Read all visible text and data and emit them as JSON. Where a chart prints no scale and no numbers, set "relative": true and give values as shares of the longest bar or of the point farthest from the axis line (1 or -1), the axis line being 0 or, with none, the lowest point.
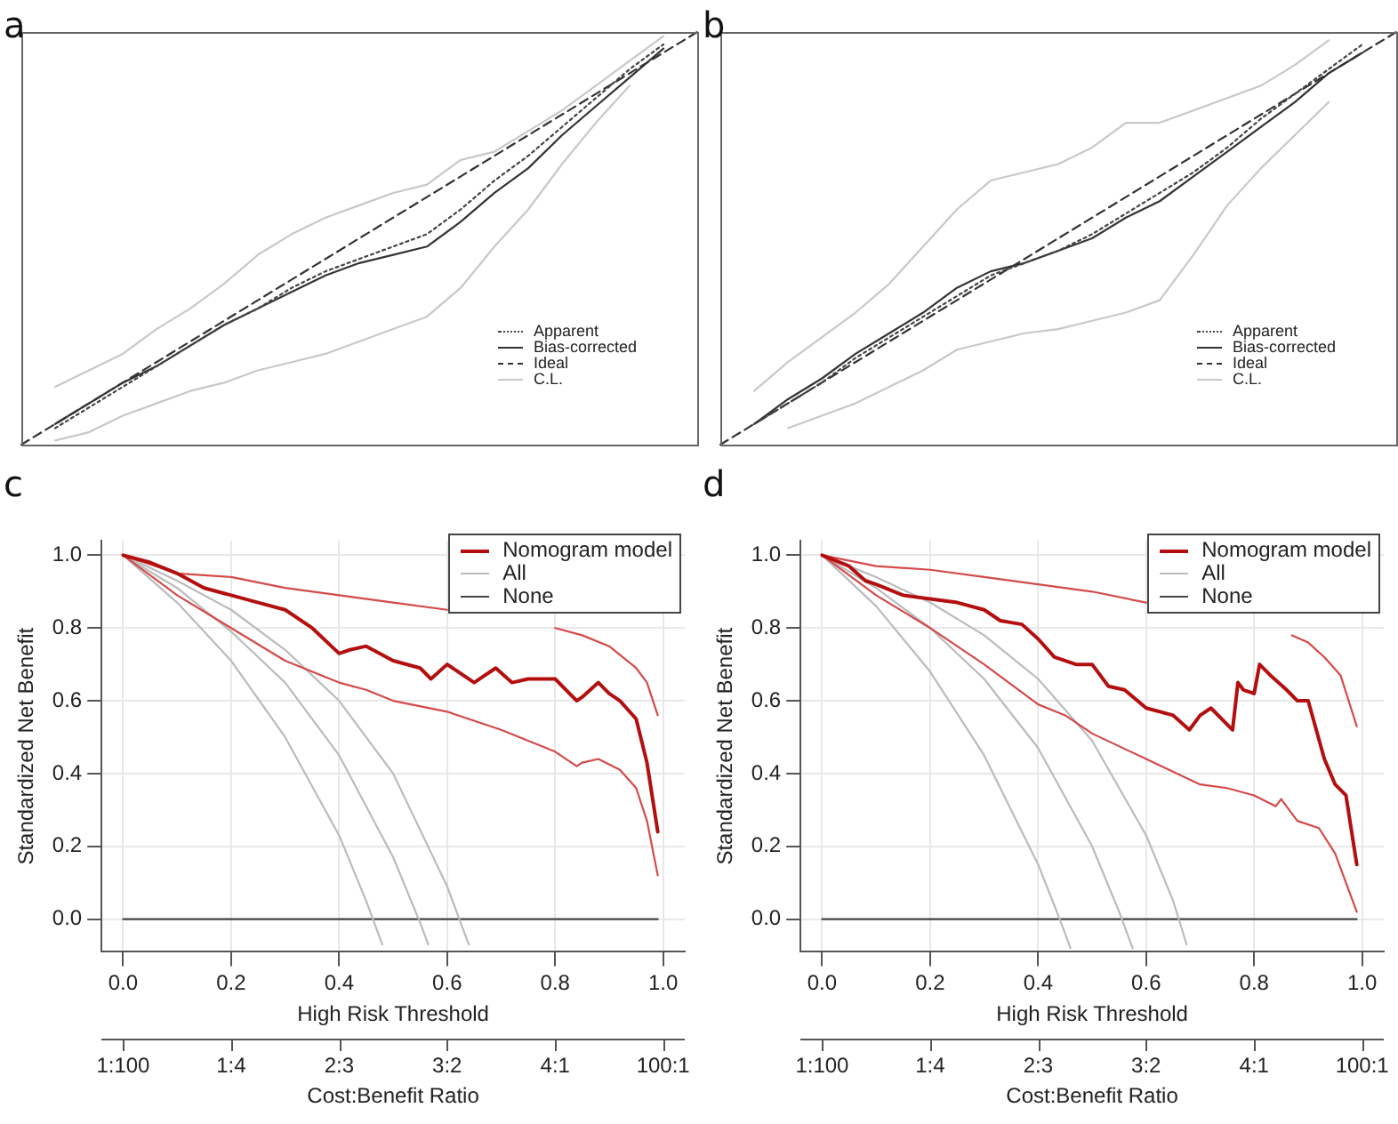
{
  "chart_data": [
    {
      "type": "line",
      "title": "a",
      "relative": true,
      "legend": "bottom right",
      "marker": "none",
      "categories": [
        null,
        null,
        null,
        null,
        null,
        null,
        null,
        null,
        null,
        null,
        null,
        null,
        null,
        null,
        null,
        null,
        null,
        null,
        null,
        null,
        null
      ],
      "series": [
        {
          "name": "Apparent",
          "color": "#444444",
          "line_style": "dotted",
          "values": [
            null,
            0.04,
            0.09,
            0.14,
            0.19,
            0.24,
            0.29,
            0.33,
            0.38,
            0.42,
            0.45,
            0.48,
            0.51,
            0.57,
            0.64,
            0.7,
            0.77,
            0.84,
            0.91,
            0.97,
            null
          ]
        },
        {
          "name": "Bias-corrected",
          "color": "#333333",
          "line_style": "solid",
          "values": [
            null,
            0.05,
            0.1,
            0.15,
            0.19,
            0.24,
            0.29,
            0.33,
            0.37,
            0.41,
            0.44,
            0.46,
            0.48,
            0.54,
            0.61,
            0.67,
            0.75,
            0.82,
            0.89,
            0.96,
            null
          ]
        },
        {
          "name": "Ideal",
          "color": "#333333",
          "line_style": "dashed",
          "values": [
            0,
            0.05,
            0.1,
            0.15,
            0.2,
            0.25,
            0.3,
            0.35,
            0.4,
            0.45,
            0.5,
            0.55,
            0.6,
            0.65,
            0.7,
            0.75,
            0.8,
            0.85,
            0.9,
            0.95,
            1
          ]
        },
        {
          "name": "C.L.",
          "color": "#c8c8c8",
          "line_style": "solid",
          "values": [
            null,
            0.14,
            0.18,
            0.22,
            0.28,
            0.33,
            0.39,
            0.46,
            0.51,
            0.55,
            0.58,
            0.61,
            0.63,
            0.69,
            0.71,
            0.76,
            0.81,
            0.87,
            0.93,
            0.99,
            null
          ]
        },
        {
          "color": "#c8c8c8",
          "line_style": "solid",
          "values": [
            null,
            0.01,
            0.03,
            0.07,
            0.1,
            0.13,
            0.15,
            0.18,
            0.2,
            0.22,
            0.25,
            0.28,
            0.31,
            0.38,
            0.48,
            0.57,
            0.68,
            0.78,
            0.87,
            null,
            null
          ]
        }
      ]
    },
    {
      "type": "line",
      "title": "b",
      "relative": true,
      "legend": "bottom right",
      "marker": "none",
      "categories": [
        null,
        null,
        null,
        null,
        null,
        null,
        null,
        null,
        null,
        null,
        null,
        null,
        null,
        null,
        null,
        null,
        null,
        null,
        null,
        null,
        null
      ],
      "series": [
        {
          "name": "Apparent",
          "color": "#444444",
          "line_style": "dotted",
          "values": [
            null,
            0.05,
            0.1,
            0.15,
            0.21,
            0.26,
            0.31,
            0.36,
            0.41,
            0.44,
            0.47,
            0.51,
            0.56,
            0.61,
            0.66,
            0.72,
            0.79,
            0.85,
            0.91,
            0.97,
            null
          ]
        },
        {
          "name": "Bias-corrected",
          "color": "#333333",
          "line_style": "solid",
          "values": [
            null,
            0.05,
            0.11,
            0.16,
            0.22,
            0.27,
            0.32,
            0.38,
            0.42,
            0.44,
            0.47,
            0.5,
            0.55,
            0.59,
            0.65,
            0.71,
            0.77,
            0.83,
            0.9,
            0.95,
            null
          ]
        },
        {
          "name": "Ideal",
          "color": "#333333",
          "line_style": "dashed",
          "values": [
            0,
            0.05,
            0.1,
            0.15,
            0.2,
            0.25,
            0.3,
            0.35,
            0.4,
            0.45,
            0.5,
            0.55,
            0.6,
            0.65,
            0.7,
            0.75,
            0.8,
            0.85,
            0.9,
            0.95,
            1
          ]
        },
        {
          "name": "C.L.",
          "color": "#c8c8c8",
          "line_style": "solid",
          "values": [
            null,
            0.13,
            0.2,
            0.26,
            0.32,
            0.39,
            0.48,
            0.57,
            0.64,
            0.66,
            0.68,
            0.72,
            0.78,
            0.78,
            0.81,
            0.84,
            0.87,
            0.92,
            0.98,
            null,
            null
          ]
        },
        {
          "color": "#c8c8c8",
          "line_style": "solid",
          "values": [
            null,
            null,
            0.04,
            0.07,
            0.1,
            0.14,
            0.18,
            0.23,
            0.25,
            0.27,
            0.28,
            0.3,
            0.32,
            0.35,
            0.46,
            0.58,
            0.67,
            0.75,
            0.83,
            null,
            null
          ]
        }
      ]
    },
    {
      "type": "line",
      "title": "c",
      "xlabel": "High Risk Threshold",
      "ylabel": "Standardized Net Benefit",
      "x2label": "Cost:Benefit Ratio",
      "legend": "top right",
      "grid": true,
      "marker": "none",
      "xlim": [
        -0.04,
        1.04
      ],
      "ylim": [
        -0.09,
        1.04
      ],
      "xticks": [
        {
          "value": 0,
          "label": "0.0"
        },
        {
          "value": 0.2,
          "label": "0.2"
        },
        {
          "value": 0.4,
          "label": "0.4"
        },
        {
          "value": 0.6,
          "label": "0.6"
        },
        {
          "value": 0.8,
          "label": "0.8"
        },
        {
          "value": 1,
          "label": "1.0"
        }
      ],
      "yticks": [
        {
          "value": 0,
          "label": "0.0"
        },
        {
          "value": 0.2,
          "label": "0.2"
        },
        {
          "value": 0.4,
          "label": "0.4"
        },
        {
          "value": 0.6,
          "label": "0.6"
        },
        {
          "value": 0.8,
          "label": "0.8"
        },
        {
          "value": 1,
          "label": "1.0"
        }
      ],
      "annotations": [
        "1:100",
        "1:4",
        "2:3",
        "3:2",
        "4:1",
        "100:1"
      ],
      "series": [
        {
          "name": "Nomogram model",
          "color": "#b40f0f",
          "line_style": "solid",
          "x": [
            0,
            0.05,
            0.1,
            0.15,
            0.2,
            0.25,
            0.3,
            0.35,
            0.4,
            0.42,
            0.45,
            0.5,
            0.55,
            0.57,
            0.6,
            0.65,
            0.69,
            0.72,
            0.75,
            0.8,
            0.84,
            0.85,
            0.88,
            0.9,
            0.92,
            0.95,
            0.97,
            0.99
          ],
          "values": [
            1,
            0.98,
            0.95,
            0.91,
            0.89,
            0.87,
            0.85,
            0.8,
            0.73,
            0.74,
            0.75,
            0.71,
            0.69,
            0.66,
            0.7,
            0.65,
            0.69,
            0.65,
            0.66,
            0.66,
            0.6,
            0.61,
            0.65,
            0.62,
            0.6,
            0.55,
            0.43,
            0.24
          ]
        },
        {
          "color": "#d44a4a",
          "line_style": "solid",
          "x": [
            0,
            0.1,
            0.2,
            0.3,
            0.4,
            0.5,
            0.6,
            0.65,
            0.7,
            0.75,
            0.8,
            0.85,
            0.9,
            0.95,
            0.97,
            0.99
          ],
          "values": [
            1,
            0.95,
            0.94,
            0.91,
            0.89,
            0.87,
            0.85,
            null,
            null,
            null,
            0.8,
            0.78,
            0.75,
            0.69,
            0.65,
            0.56
          ]
        },
        {
          "color": "#d44a4a",
          "line_style": "solid",
          "x": [
            0,
            0.1,
            0.2,
            0.3,
            0.4,
            0.45,
            0.5,
            0.6,
            0.7,
            0.8,
            0.84,
            0.85,
            0.88,
            0.92,
            0.95,
            0.97,
            0.99
          ],
          "values": [
            1,
            0.89,
            0.8,
            0.71,
            0.65,
            0.63,
            0.6,
            0.57,
            0.52,
            0.46,
            0.42,
            0.43,
            0.44,
            0.41,
            0.36,
            0.27,
            0.12
          ]
        },
        {
          "color": "#bbbbbb",
          "line_style": "solid",
          "x": [
            0,
            0.1,
            0.2,
            0.3,
            0.4,
            0.45,
            0.48
          ],
          "values": [
            1,
            0.87,
            0.71,
            0.5,
            0.23,
            0.05,
            -0.07
          ]
        },
        {
          "name": "All",
          "color": "#bbbbbb",
          "line_style": "solid",
          "x": [
            0,
            0.1,
            0.2,
            0.3,
            0.4,
            0.5,
            0.55,
            0.565
          ],
          "values": [
            1,
            0.91,
            0.79,
            0.65,
            0.45,
            0.17,
            -0.01,
            -0.07
          ]
        },
        {
          "color": "#bbbbbb",
          "line_style": "solid",
          "x": [
            0,
            0.1,
            0.2,
            0.3,
            0.4,
            0.5,
            0.6,
            0.63,
            0.64
          ],
          "values": [
            1,
            0.93,
            0.85,
            0.74,
            0.6,
            0.4,
            0.09,
            -0.03,
            -0.07
          ]
        },
        {
          "name": "None",
          "color": "#444444",
          "line_style": "solid",
          "x": [
            0,
            0.99
          ],
          "values": [
            0,
            0
          ]
        }
      ]
    },
    {
      "type": "line",
      "title": "d",
      "xlabel": "High Risk Threshold",
      "ylabel": "Standardized Net Benefit",
      "x2label": "Cost:Benefit Ratio",
      "legend": "top right",
      "grid": true,
      "marker": "none",
      "xlim": [
        -0.04,
        1.04
      ],
      "ylim": [
        -0.09,
        1.04
      ],
      "xticks": [
        {
          "value": 0,
          "label": "0.0"
        },
        {
          "value": 0.2,
          "label": "0.2"
        },
        {
          "value": 0.4,
          "label": "0.4"
        },
        {
          "value": 0.6,
          "label": "0.6"
        },
        {
          "value": 0.8,
          "label": "0.8"
        },
        {
          "value": 1,
          "label": "1.0"
        }
      ],
      "yticks": [
        {
          "value": 0,
          "label": "0.0"
        },
        {
          "value": 0.2,
          "label": "0.2"
        },
        {
          "value": 0.4,
          "label": "0.4"
        },
        {
          "value": 0.6,
          "label": "0.6"
        },
        {
          "value": 0.8,
          "label": "0.8"
        },
        {
          "value": 1,
          "label": "1.0"
        }
      ],
      "annotations": [
        "1:100",
        "1:4",
        "2:3",
        "3:2",
        "4:1",
        "100:1"
      ],
      "series": [
        {
          "name": "Nomogram model",
          "color": "#b40f0f",
          "line_style": "solid",
          "x": [
            0,
            0.05,
            0.08,
            0.1,
            0.15,
            0.2,
            0.25,
            0.3,
            0.33,
            0.37,
            0.4,
            0.43,
            0.47,
            0.5,
            0.53,
            0.56,
            0.6,
            0.65,
            0.68,
            0.7,
            0.72,
            0.76,
            0.77,
            0.78,
            0.8,
            0.81,
            0.83,
            0.86,
            0.88,
            0.9,
            0.93,
            0.95,
            0.97,
            0.99
          ],
          "values": [
            1,
            0.97,
            0.93,
            0.92,
            0.89,
            0.88,
            0.87,
            0.85,
            0.82,
            0.81,
            0.77,
            0.72,
            0.7,
            0.7,
            0.64,
            0.63,
            0.58,
            0.56,
            0.52,
            0.56,
            0.58,
            0.52,
            0.65,
            0.63,
            0.62,
            0.7,
            0.67,
            0.63,
            0.6,
            0.6,
            0.44,
            0.37,
            0.34,
            0.15
          ]
        },
        {
          "color": "#d44a4a",
          "line_style": "solid",
          "x": [
            0,
            0.1,
            0.2,
            0.3,
            0.4,
            0.5,
            0.6,
            0.65,
            0.7,
            0.75,
            0.8,
            0.87,
            0.9,
            0.93,
            0.96,
            0.99
          ],
          "values": [
            1,
            0.97,
            0.96,
            0.94,
            0.92,
            0.9,
            0.87,
            null,
            null,
            null,
            null,
            0.78,
            0.76,
            0.72,
            0.67,
            0.53
          ]
        },
        {
          "color": "#d44a4a",
          "line_style": "solid",
          "x": [
            0,
            0.1,
            0.2,
            0.3,
            0.4,
            0.45,
            0.5,
            0.6,
            0.7,
            0.75,
            0.8,
            0.84,
            0.85,
            0.88,
            0.92,
            0.95,
            0.99
          ],
          "values": [
            1,
            0.89,
            0.8,
            0.7,
            0.59,
            0.56,
            0.51,
            0.44,
            0.37,
            0.36,
            0.34,
            0.31,
            0.33,
            0.27,
            0.25,
            0.18,
            0.02
          ]
        },
        {
          "color": "#bbbbbb",
          "line_style": "solid",
          "x": [
            0,
            0.1,
            0.2,
            0.3,
            0.4,
            0.44,
            0.46
          ],
          "values": [
            1,
            0.86,
            0.68,
            0.45,
            0.15,
            0,
            -0.08
          ]
        },
        {
          "name": "All",
          "color": "#bbbbbb",
          "line_style": "solid",
          "x": [
            0,
            0.1,
            0.2,
            0.3,
            0.4,
            0.5,
            0.55,
            0.575
          ],
          "values": [
            1,
            0.91,
            0.8,
            0.66,
            0.47,
            0.2,
            0.02,
            -0.08
          ]
        },
        {
          "color": "#bbbbbb",
          "line_style": "solid",
          "x": [
            0,
            0.1,
            0.2,
            0.3,
            0.4,
            0.5,
            0.6,
            0.65,
            0.675
          ],
          "values": [
            1,
            0.94,
            0.87,
            0.78,
            0.66,
            0.49,
            0.23,
            0.05,
            -0.07
          ]
        },
        {
          "name": "None",
          "color": "#444444",
          "line_style": "solid",
          "x": [
            0,
            0.99
          ],
          "values": [
            0,
            0
          ]
        }
      ]
    }
  ]
}
